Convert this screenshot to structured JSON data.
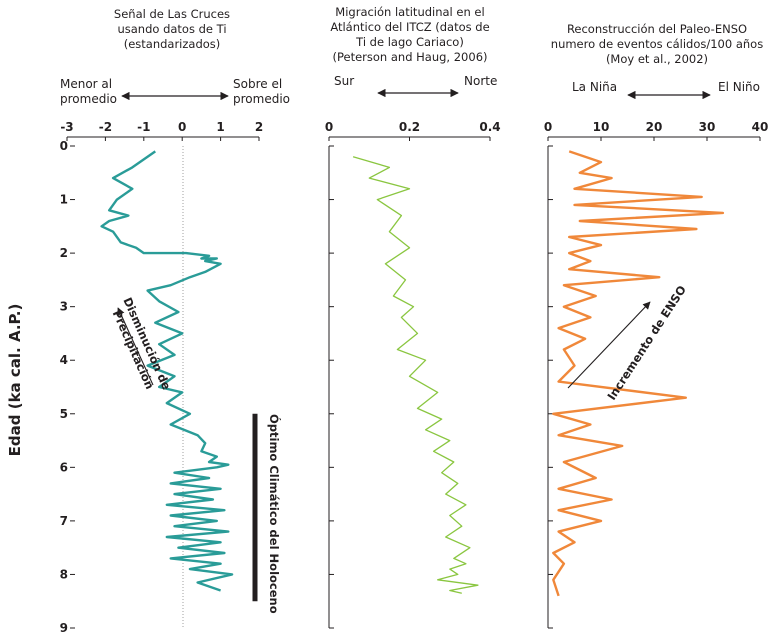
{
  "y_axis": {
    "label": "Edad (ka cal. A.P.)",
    "ticks": [
      0,
      1,
      2,
      3,
      4,
      5,
      6,
      7,
      8,
      9
    ],
    "ylim": [
      0,
      9
    ],
    "inverted": true
  },
  "chart_data": [
    {
      "type": "line",
      "title_lines": [
        "Señal de Las Cruces",
        "usando datos de Ti",
        "(estandarizados)"
      ],
      "direction": {
        "left": "Menor al promedio",
        "left_lines": [
          "Menor al",
          "promedio"
        ],
        "right": "Sobre el promedio",
        "right_lines": [
          "Sobre el",
          "promedio"
        ]
      },
      "xlim": [
        -3,
        2
      ],
      "xticks": [
        -3,
        -2,
        -1,
        0,
        1,
        2
      ],
      "xticklabels": [
        "-3",
        "-2",
        "-1",
        "0",
        "1",
        "2"
      ],
      "reference_line_x": 0,
      "color": "#2a9c98",
      "annotation": {
        "text_lines": [
          "Disminución de",
          "Precipitación"
        ]
      },
      "series": [
        {
          "x": [
            -0.7,
            -1.3,
            -1.8,
            -1.3,
            -1.7,
            -1.9,
            -1.4,
            -1.9,
            -2.1,
            -1.8,
            -1.6,
            -1.2,
            -1.0,
            -0.4,
            0.1,
            0.7,
            0.5,
            0.9,
            0.6,
            1.0,
            0.6,
            0.2,
            -0.3,
            -0.9,
            -0.6,
            -0.1,
            -0.7,
            0.0,
            -0.6,
            -0.2,
            -0.9,
            -0.2,
            -0.6,
            0.0,
            -0.4,
            0.2,
            -0.3,
            0.4,
            0.6,
            0.5,
            0.9,
            0.7,
            1.2,
            0.9,
            -0.2,
            0.7,
            -0.3,
            1.0,
            -0.2,
            0.8,
            -0.4,
            1.1,
            -0.3,
            0.9,
            -0.2,
            1.2,
            -0.4,
            1.0,
            -0.1,
            1.1,
            -0.3,
            1.0,
            0.2,
            1.3,
            0.4,
            1.0
          ],
          "y": [
            0.1,
            0.4,
            0.6,
            0.8,
            1.0,
            1.2,
            1.3,
            1.4,
            1.5,
            1.6,
            1.8,
            1.9,
            2.0,
            2.0,
            2.0,
            2.05,
            2.1,
            2.1,
            2.15,
            2.2,
            2.35,
            2.45,
            2.6,
            2.7,
            2.9,
            3.1,
            3.3,
            3.5,
            3.7,
            3.9,
            4.1,
            4.3,
            4.5,
            4.6,
            4.8,
            5.0,
            5.2,
            5.4,
            5.55,
            5.7,
            5.8,
            5.9,
            5.95,
            6.0,
            6.1,
            6.2,
            6.3,
            6.4,
            6.5,
            6.6,
            6.7,
            6.8,
            6.9,
            7.0,
            7.1,
            7.2,
            7.3,
            7.4,
            7.5,
            7.6,
            7.7,
            7.8,
            7.9,
            8.0,
            8.15,
            8.3
          ]
        }
      ]
    },
    {
      "type": "line",
      "title_lines": [
        "Migración latitudinal en el",
        "Atlántico del ITCZ (datos de",
        "Ti de lago Cariaco)",
        "(Peterson and Haug, 2006)"
      ],
      "direction": {
        "left": "Sur",
        "right": "Norte"
      },
      "xlim": [
        0,
        0.4
      ],
      "xticks": [
        0,
        0.2,
        0.4
      ],
      "xticklabels": [
        "0",
        "0.2",
        "0.4"
      ],
      "color": "#8ac640",
      "series": [
        {
          "x": [
            0.06,
            0.15,
            0.1,
            0.2,
            0.12,
            0.18,
            0.15,
            0.2,
            0.14,
            0.19,
            0.16,
            0.21,
            0.18,
            0.22,
            0.17,
            0.24,
            0.2,
            0.27,
            0.22,
            0.28,
            0.24,
            0.3,
            0.26,
            0.31,
            0.28,
            0.32,
            0.29,
            0.34,
            0.3,
            0.33,
            0.29,
            0.35,
            0.31,
            0.34,
            0.3,
            0.32,
            0.27,
            0.37,
            0.3,
            0.33
          ],
          "y": [
            0.2,
            0.4,
            0.6,
            0.8,
            1.0,
            1.3,
            1.6,
            1.9,
            2.2,
            2.5,
            2.8,
            3.0,
            3.2,
            3.5,
            3.8,
            4.0,
            4.3,
            4.6,
            4.9,
            5.1,
            5.3,
            5.5,
            5.7,
            5.9,
            6.1,
            6.3,
            6.5,
            6.7,
            6.9,
            7.1,
            7.3,
            7.5,
            7.7,
            7.8,
            7.9,
            8.0,
            8.1,
            8.2,
            8.3,
            8.35
          ]
        }
      ]
    },
    {
      "type": "line",
      "title_lines": [
        "Reconstrucción del Paleo-ENSO",
        "numero de eventos cálidos/100 años",
        "(Moy et al., 2002)"
      ],
      "direction": {
        "left": "La Niña",
        "right": "El Niño"
      },
      "xlim": [
        0,
        40
      ],
      "xticks": [
        0,
        10,
        20,
        30,
        40
      ],
      "xticklabels": [
        "0",
        "10",
        "20",
        "30",
        "40"
      ],
      "color": "#f0883a",
      "annotation": {
        "text": "Incremento de ENSO"
      },
      "series": [
        {
          "x": [
            4,
            10,
            6,
            12,
            5,
            29,
            5,
            33,
            6,
            28,
            4,
            10,
            4,
            8,
            4,
            21,
            3,
            9,
            3,
            8,
            2,
            7,
            3,
            5,
            2,
            26,
            1,
            8,
            2,
            14,
            3,
            9,
            2,
            12,
            2,
            10,
            2,
            5,
            1,
            3,
            1,
            2
          ],
          "y": [
            0.1,
            0.3,
            0.5,
            0.6,
            0.8,
            0.95,
            1.1,
            1.25,
            1.4,
            1.55,
            1.7,
            1.85,
            2.0,
            2.15,
            2.3,
            2.45,
            2.6,
            2.8,
            3.0,
            3.2,
            3.4,
            3.6,
            3.8,
            4.1,
            4.4,
            4.7,
            5.0,
            5.2,
            5.4,
            5.6,
            5.9,
            6.2,
            6.4,
            6.6,
            6.8,
            7.0,
            7.2,
            7.4,
            7.6,
            7.8,
            8.1,
            8.4
          ]
        }
      ]
    }
  ],
  "holocene_annotation": "Óptimo Climático del Holoceno",
  "holocene_bar_range": [
    5.0,
    8.5
  ]
}
